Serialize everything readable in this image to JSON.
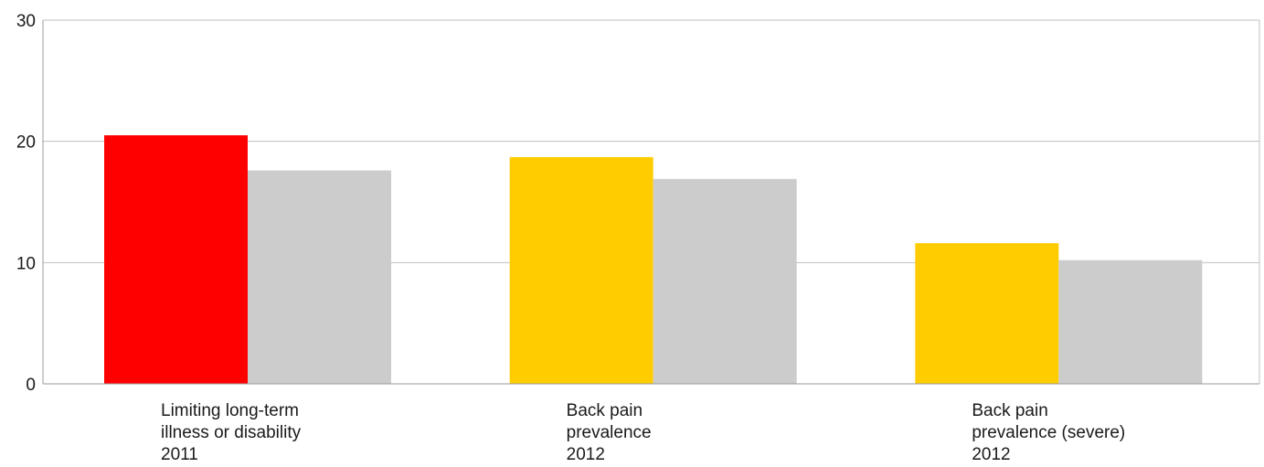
{
  "chart_data": {
    "type": "bar",
    "title": "",
    "xlabel": "",
    "ylabel": "",
    "ylim": [
      0,
      30
    ],
    "yticks": [
      "0",
      "10",
      "20",
      "30"
    ],
    "grid": true,
    "legend": "none",
    "categories": [
      [
        "Limiting long-term",
        "illness or disability",
        "2011"
      ],
      [
        "Back pain",
        "prevalence",
        "2012"
      ],
      [
        "Back pain",
        "prevalence (severe)",
        " 2012"
      ]
    ],
    "series": [
      {
        "values": [
          20.5,
          18.7,
          11.6
        ],
        "colors": [
          "#ff0000",
          "#ffcc00",
          "#ffcc00"
        ]
      },
      {
        "values": [
          17.6,
          16.9,
          10.2
        ],
        "colors": [
          "#cccccc",
          "#cccccc",
          "#cccccc"
        ]
      }
    ],
    "colors": {
      "axis": "#999999",
      "grid": "#bfbfbf",
      "text": "#1a1a1a"
    }
  }
}
